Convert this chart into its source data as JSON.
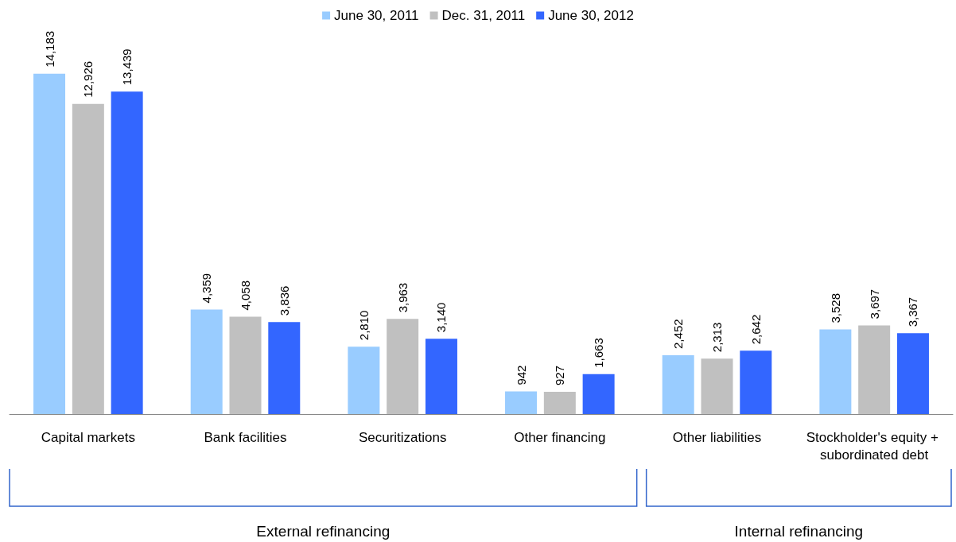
{
  "chart_data": {
    "type": "bar",
    "categories": [
      "Capital markets",
      "Bank facilities",
      "Securitizations",
      "Other financing",
      "Other liabilities",
      "Stockholder's equity + subordinated debt"
    ],
    "series": [
      {
        "name": "June 30, 2011",
        "color": "#99ccff",
        "values": [
          14183,
          4359,
          2810,
          942,
          2452,
          3528
        ],
        "value_labels": [
          "14,183",
          "4,359",
          "2,810",
          "942",
          "2,452",
          "3,528"
        ]
      },
      {
        "name": "Dec. 31, 2011",
        "color": "#c0c0c0",
        "values": [
          12926,
          4058,
          3963,
          927,
          2313,
          3697
        ],
        "value_labels": [
          "12,926",
          "4,058",
          "3,963",
          "927",
          "2,313",
          "3,697"
        ]
      },
      {
        "name": "June 30, 2012",
        "color": "#3366ff",
        "values": [
          13439,
          3836,
          3140,
          1663,
          2642,
          3367
        ],
        "value_labels": [
          "13,439",
          "3,836",
          "3,140",
          "1,663",
          "2,642",
          "3,367"
        ]
      }
    ],
    "legend": "top",
    "annotations": [
      "External refinancing",
      "Internal refinancing"
    ]
  }
}
